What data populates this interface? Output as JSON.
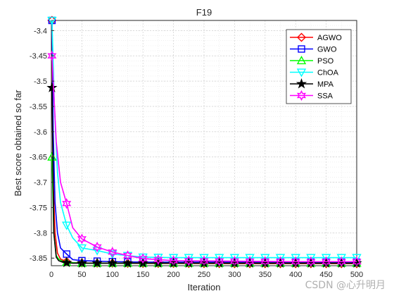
{
  "chart_data": {
    "type": "line",
    "title": "F19",
    "xlabel": "Iteration",
    "ylabel": "Best score obtained so far",
    "xlim": [
      0,
      500
    ],
    "ylim": [
      -3.865,
      -3.38
    ],
    "xticks": [
      0,
      50,
      100,
      150,
      200,
      250,
      300,
      350,
      400,
      450,
      500
    ],
    "yticks": [
      -3.85,
      -3.8,
      -3.75,
      -3.7,
      -3.65,
      -3.6,
      -3.55,
      -3.5,
      -3.45,
      -3.4
    ],
    "xtick_labels": [
      "0",
      "50",
      "100",
      "150",
      "200",
      "250",
      "300",
      "350",
      "400",
      "450",
      "500"
    ],
    "ytick_labels": [
      "-3.85",
      "-3.8",
      "-3.75",
      "-3.7",
      "-3.65",
      "-3.6",
      "-3.55",
      "-3.5",
      "-3.45",
      "-3.4"
    ],
    "grid": true,
    "legend_position": "top-right",
    "series": [
      {
        "name": "AGWO",
        "color": "#ff0000",
        "marker": "diamond",
        "x": [
          1,
          3,
          6,
          10,
          15,
          25,
          35,
          50,
          75,
          100,
          150,
          200,
          300,
          400,
          500
        ],
        "y": [
          -3.38,
          -3.7,
          -3.8,
          -3.84,
          -3.852,
          -3.857,
          -3.859,
          -3.8595,
          -3.86,
          -3.86,
          -3.8605,
          -3.8605,
          -3.861,
          -3.861,
          -3.861
        ]
      },
      {
        "name": "GWO",
        "color": "#0000ff",
        "marker": "square",
        "x": [
          1,
          3,
          6,
          10,
          15,
          25,
          35,
          50,
          75,
          100,
          150,
          200,
          300,
          400,
          500
        ],
        "y": [
          -3.38,
          -3.6,
          -3.74,
          -3.8,
          -3.83,
          -3.842,
          -3.853,
          -3.855,
          -3.856,
          -3.857,
          -3.858,
          -3.858,
          -3.858,
          -3.858,
          -3.858
        ]
      },
      {
        "name": "PSO",
        "color": "#00ff00",
        "marker": "triangle-up",
        "x": [
          1,
          4,
          8,
          12,
          18,
          25,
          35,
          50,
          75,
          100,
          150,
          200,
          300,
          400,
          500
        ],
        "y": [
          -3.65,
          -3.8,
          -3.845,
          -3.852,
          -3.856,
          -3.858,
          -3.859,
          -3.86,
          -3.86,
          -3.86,
          -3.86,
          -3.86,
          -3.86,
          -3.86,
          -3.86
        ]
      },
      {
        "name": "ChOA",
        "color": "#00ffff",
        "marker": "triangle-down",
        "x": [
          1,
          5,
          10,
          15,
          25,
          35,
          50,
          75,
          100,
          150,
          200,
          250,
          300,
          400,
          500
        ],
        "y": [
          -3.38,
          -3.55,
          -3.68,
          -3.74,
          -3.785,
          -3.81,
          -3.83,
          -3.835,
          -3.842,
          -3.848,
          -3.849,
          -3.849,
          -3.849,
          -3.849,
          -3.849
        ]
      },
      {
        "name": "MPA",
        "color": "#000000",
        "marker": "pentagram",
        "x": [
          1,
          4,
          8,
          12,
          18,
          25,
          35,
          50,
          75,
          100,
          150,
          200,
          300,
          400,
          500
        ],
        "y": [
          -3.513,
          -3.8,
          -3.848,
          -3.855,
          -3.858,
          -3.859,
          -3.86,
          -3.86,
          -3.86,
          -3.86,
          -3.86,
          -3.86,
          -3.86,
          -3.86,
          -3.86
        ]
      },
      {
        "name": "SSA",
        "color": "#ff00ff",
        "marker": "hexagram",
        "x": [
          1,
          8,
          15,
          25,
          35,
          50,
          75,
          100,
          125,
          150,
          175,
          200,
          300,
          400,
          500
        ],
        "y": [
          -3.45,
          -3.62,
          -3.7,
          -3.742,
          -3.79,
          -3.812,
          -3.828,
          -3.838,
          -3.845,
          -3.851,
          -3.853,
          -3.855,
          -3.856,
          -3.857,
          -3.857
        ]
      }
    ]
  },
  "watermark": "CSDN @心升明月"
}
